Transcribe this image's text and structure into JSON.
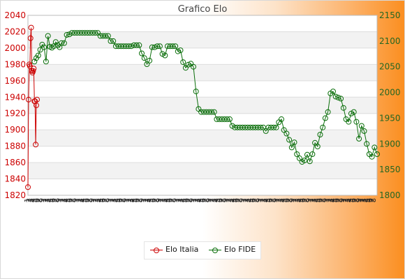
{
  "chart_data": {
    "type": "line",
    "title": "Grafico Elo",
    "y_left": {
      "min": 1820,
      "max": 2040,
      "ticks": [
        1820,
        1840,
        1860,
        1880,
        1900,
        1920,
        1940,
        1960,
        1980,
        2000,
        2020,
        2040
      ],
      "color": "#cc0000"
    },
    "y_right": {
      "min": 1800,
      "max": 2150,
      "ticks": [
        1800,
        1850,
        1900,
        1950,
        2000,
        2050,
        2100,
        2150
      ],
      "color": "#226622"
    },
    "x_count": 188,
    "x_tick_pattern": [
      "1",
      "2",
      "3",
      "4",
      "5",
      "6",
      "7",
      "8",
      "9"
    ],
    "grid": true,
    "legend_position": "bottom-center",
    "series": [
      {
        "name": "Elo Italia",
        "axis": "left",
        "color": "#cc0000",
        "x": [
          0,
          1,
          2,
          3,
          4,
          5,
          6,
          7,
          8,
          9,
          10,
          11,
          12,
          13,
          14,
          15,
          16,
          17
        ],
        "values": [
          1830,
          1937,
          1980,
          1978,
          2012,
          2025,
          1972,
          1970,
          1972,
          1975,
          1935,
          1935,
          1882,
          1930,
          1937,
          null,
          null,
          null
        ]
      },
      {
        "name": "Elo FIDE",
        "axis": "right",
        "color": "#0a6e0a",
        "x": [
          10,
          13,
          16,
          19,
          22,
          25,
          28,
          31,
          34,
          37,
          40,
          43,
          46,
          49,
          52,
          56,
          60,
          64,
          68,
          72,
          76,
          80,
          84,
          88,
          92,
          96,
          100,
          104,
          108,
          112,
          116,
          120,
          124,
          128,
          132,
          136,
          140,
          144,
          148,
          152,
          156,
          160,
          164,
          168,
          172,
          176,
          180,
          184,
          188,
          192,
          196,
          200,
          204,
          208,
          212,
          216,
          220,
          224,
          228,
          232,
          236,
          240,
          244,
          248,
          252,
          256,
          260,
          264,
          268,
          272,
          276,
          280,
          284,
          288,
          292,
          296,
          300,
          304,
          308,
          312,
          316,
          320,
          324,
          328,
          332,
          336,
          340,
          344,
          348,
          352,
          356,
          360,
          364,
          368,
          372,
          376,
          380,
          384,
          388,
          392,
          396,
          400,
          404,
          408,
          412,
          416,
          420,
          424,
          428,
          432,
          436,
          440,
          444,
          448,
          452,
          456,
          460,
          464,
          468,
          472,
          476,
          480,
          484,
          488,
          492,
          496,
          500,
          504,
          508,
          512,
          516,
          520,
          524,
          528,
          532,
          536,
          540
        ],
        "values": [
          2060,
          2067,
          2072,
          2083,
          2093,
          2088,
          2060,
          2110,
          2089,
          2087,
          2090,
          2098,
          2092,
          2088,
          2096,
          2096,
          2112,
          2113,
          2116,
          2116,
          2116,
          2116,
          2116,
          2116,
          2116,
          2116,
          2116,
          2116,
          2116,
          2110,
          2110,
          2110,
          2110,
          2100,
          2100,
          2090,
          2090,
          2090,
          2090,
          2090,
          2090,
          2090,
          2092,
          2092,
          2092,
          2076,
          2067,
          2055,
          2062,
          2088,
          2088,
          2090,
          2090,
          2075,
          2072,
          2090,
          2090,
          2090,
          2090,
          2080,
          2082,
          2059,
          2048,
          2054,
          2056,
          2050,
          2002,
          1968,
          1962,
          1962,
          1962,
          1962,
          1962,
          1962,
          1948,
          1948,
          1948,
          1948,
          1948,
          1948,
          1935,
          1932,
          1932,
          1932,
          1932,
          1932,
          1932,
          1932,
          1932,
          1932,
          1932,
          1932,
          1932,
          1925,
          1932,
          1932,
          1932,
          1932,
          1942,
          1948,
          1927,
          1920,
          1908,
          1893,
          1903,
          1880,
          1872,
          1865,
          1868,
          1879,
          1866,
          1880,
          1902,
          1895,
          1918,
          1932,
          1950,
          1962,
          1998,
          2002,
          1992,
          1990,
          1988,
          1970,
          1948,
          1943,
          1959,
          1962,
          1943,
          1910,
          1935,
          1925,
          1900,
          1880,
          1875,
          1893,
          1880
        ]
      }
    ]
  },
  "legend": {
    "italia_label": "Elo Italia",
    "fide_label": "Elo FIDE"
  }
}
